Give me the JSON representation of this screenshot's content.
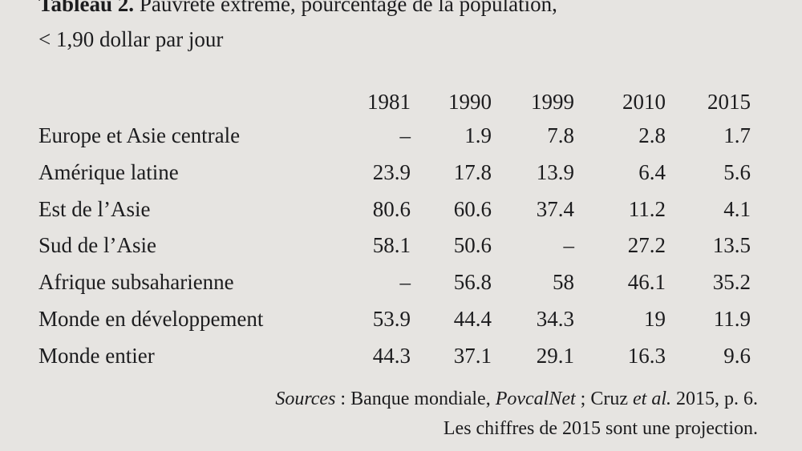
{
  "title": {
    "label": "Tableau 2.",
    "text": " Pauvreté extrême, pourcentage de la population,",
    "subtitle": "< 1,90 dollar par jour"
  },
  "table": {
    "columns": [
      "1981",
      "1990",
      "1999",
      "2010",
      "2015"
    ],
    "rows": [
      [
        "Europe et Asie centrale",
        "–",
        "1.9",
        "7.8",
        "2.8",
        "1.7"
      ],
      [
        "Amérique latine",
        "23.9",
        "17.8",
        "13.9",
        "6.4",
        "5.6"
      ],
      [
        "Est de l’Asie",
        "80.6",
        "60.6",
        "37.4",
        "11.2",
        "4.1"
      ],
      [
        "Sud de l’Asie",
        "58.1",
        "50.6",
        "–",
        "27.2",
        "13.5"
      ],
      [
        "Afrique subsaharienne",
        "–",
        "56.8",
        "58",
        "46.1",
        "35.2"
      ],
      [
        "Monde en développement",
        "53.9",
        "44.4",
        "34.3",
        "19",
        "11.9"
      ],
      [
        "Monde entier",
        "44.3",
        "37.1",
        "29.1",
        "16.3",
        "9.6"
      ]
    ]
  },
  "footer": {
    "sources": [
      "Sources",
      " : Banque mondiale, ",
      "PovcalNet",
      " ; Cruz ",
      "et al.",
      " 2015, p. 6."
    ],
    "note": "Les chiffres de 2015 sont une projection."
  }
}
